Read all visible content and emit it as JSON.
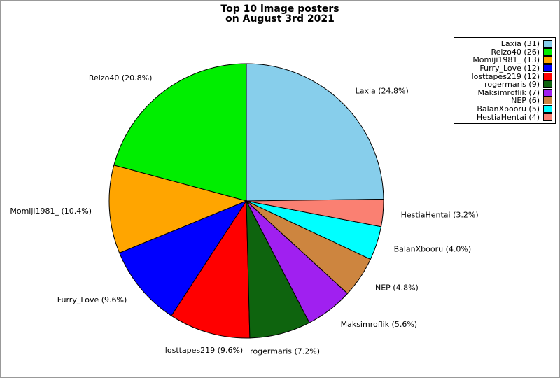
{
  "window": {
    "background": "#ffffff",
    "frame_border_color": "#999999"
  },
  "title": {
    "line1": "Top 10 image posters",
    "line2": "on August 3rd 2021"
  },
  "chart_data": {
    "type": "pie",
    "title": "Top 10 image posters on August 3rd 2021",
    "legend_position": "top-right",
    "legend_style": "right-aligned labels with color swatches on the right",
    "slice_outline_color": "#000000",
    "start_rule": "first slice ends at 12 o'clock, slices proceed counterclockwise in listed order",
    "slices": [
      {
        "name": "Laxia",
        "count": 31,
        "pct": 24.8,
        "label": "Laxia (24.8%)",
        "legend_label": "Laxia (31)",
        "color": "#87CEEB"
      },
      {
        "name": "Reizo40",
        "count": 26,
        "pct": 20.8,
        "label": "Reizo40 (20.8%)",
        "legend_label": "Reizo40 (26)",
        "color": "#00EE00"
      },
      {
        "name": "Momiji1981_",
        "count": 13,
        "pct": 10.4,
        "label": "Momiji1981_ (10.4%)",
        "legend_label": "Momiji1981_ (13)",
        "color": "#FFA500"
      },
      {
        "name": "Furry_Love",
        "count": 12,
        "pct": 9.6,
        "label": "Furry_Love (9.6%)",
        "legend_label": "Furry_Love (12)",
        "color": "#0000FF"
      },
      {
        "name": "losttapes219",
        "count": 12,
        "pct": 9.6,
        "label": "losttapes219 (9.6%)",
        "legend_label": "losttapes219 (12)",
        "color": "#FF0000"
      },
      {
        "name": "rogermaris",
        "count": 9,
        "pct": 7.2,
        "label": "rogermaris (7.2%)",
        "legend_label": "rogermaris (9)",
        "color": "#0E640E"
      },
      {
        "name": "Maksimroflik",
        "count": 7,
        "pct": 5.6,
        "label": "Maksimroflik (5.6%)",
        "legend_label": "Maksimroflik (7)",
        "color": "#A020F0"
      },
      {
        "name": "NEP",
        "count": 6,
        "pct": 4.8,
        "label": "NEP (4.8%)",
        "legend_label": "NEP (6)",
        "color": "#CD853F"
      },
      {
        "name": "BalanXbooru",
        "count": 5,
        "pct": 4.0,
        "label": "BalanXbooru (4.0%)",
        "legend_label": "BalanXbooru (5)",
        "color": "#00FFFF"
      },
      {
        "name": "HestiaHentai",
        "count": 4,
        "pct": 3.2,
        "label": "HestiaHentai (3.2%)",
        "legend_label": "HestiaHentai (4)",
        "color": "#FA8072"
      }
    ]
  }
}
